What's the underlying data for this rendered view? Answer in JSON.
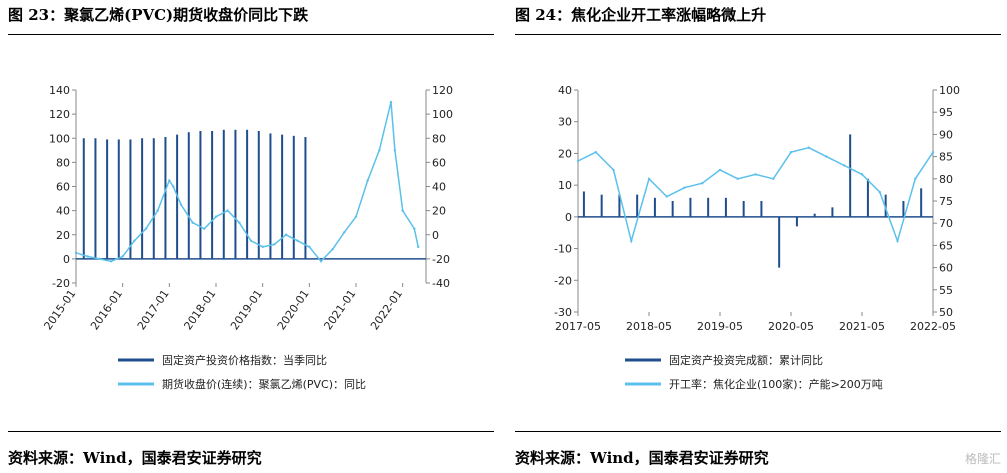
{
  "left": {
    "title": "图 23：聚氯乙烯(PVC)期货收盘价同比下跌",
    "source": "资料来源：Wind，国泰君安证券研究"
  },
  "right": {
    "title": "图 24：焦化企业开工率涨幅略微上升",
    "source": "资料来源：Wind，国泰君安证券研究"
  },
  "watermark": "格隆汇",
  "chart_data": [
    {
      "type": "bar",
      "unit_left": "(%)",
      "unit_right": "(%)",
      "x_ticks": [
        "2015-01",
        "2016-01",
        "2017-01",
        "2018-01",
        "2019-01",
        "2020-01",
        "2021-01",
        "2022-01"
      ],
      "y_left_ticks": [
        -20,
        0,
        20,
        40,
        60,
        80,
        100,
        120,
        140
      ],
      "y_right_ticks": [
        -40,
        -20,
        0,
        20,
        40,
        60,
        80,
        100,
        120
      ],
      "ylim_left": [
        -20,
        140
      ],
      "ylim_right": [
        -40,
        120
      ],
      "colors": {
        "primary": "#1f4e8c",
        "secondary": "#5bc0eb"
      },
      "bar_series": {
        "name": "固定资产投资价格指数：当季同比",
        "axis": "left",
        "x": [
          "2015-03",
          "2015-06",
          "2015-09",
          "2015-12",
          "2016-03",
          "2016-06",
          "2016-09",
          "2016-12",
          "2017-03",
          "2017-06",
          "2017-09",
          "2017-12",
          "2018-03",
          "2018-06",
          "2018-09",
          "2018-12",
          "2019-03",
          "2019-06",
          "2019-09",
          "2019-12"
        ],
        "values": [
          100,
          100,
          99,
          99,
          99,
          100,
          100,
          101,
          103,
          105,
          106,
          106,
          107,
          107,
          107,
          106,
          104,
          103,
          102,
          101
        ]
      },
      "line_series": {
        "name": "期货收盘价(连续)：聚氯乙烯(PVC)：同比",
        "axis": "right",
        "x": [
          "2015-01",
          "2015-04",
          "2015-07",
          "2015-10",
          "2016-01",
          "2016-04",
          "2016-07",
          "2016-10",
          "2017-01",
          "2017-02",
          "2017-04",
          "2017-07",
          "2017-10",
          "2018-01",
          "2018-04",
          "2018-07",
          "2018-10",
          "2019-01",
          "2019-04",
          "2019-07",
          "2019-10",
          "2020-01",
          "2020-04",
          "2020-07",
          "2020-10",
          "2021-01",
          "2021-04",
          "2021-07",
          "2021-10",
          "2021-11",
          "2022-01",
          "2022-04",
          "2022-05"
        ],
        "values": [
          -15,
          -18,
          -20,
          -22,
          -18,
          -5,
          5,
          20,
          45,
          40,
          25,
          10,
          5,
          15,
          20,
          10,
          -5,
          -10,
          -8,
          0,
          -5,
          -10,
          -22,
          -12,
          2,
          15,
          45,
          70,
          110,
          70,
          20,
          5,
          -10
        ]
      },
      "legend_position": "bottom"
    },
    {
      "type": "bar",
      "unit_left": "(%)",
      "unit_right": "(%)",
      "x_ticks": [
        "2017-05",
        "2018-05",
        "2019-05",
        "2020-05",
        "2021-05",
        "2022-05"
      ],
      "y_left_ticks": [
        -30,
        -20,
        -10,
        0,
        10,
        20,
        30,
        40
      ],
      "y_right_ticks": [
        50,
        55,
        60,
        65,
        70,
        75,
        80,
        85,
        90,
        95,
        100
      ],
      "ylim_left": [
        -30,
        40
      ],
      "ylim_right": [
        50,
        100
      ],
      "colors": {
        "primary": "#1f4e8c",
        "secondary": "#5bc0eb"
      },
      "bar_series": {
        "name": "固定资产投资完成额：累计同比",
        "axis": "left",
        "x": [
          "2017-06",
          "2017-09",
          "2017-12",
          "2018-03",
          "2018-06",
          "2018-09",
          "2018-12",
          "2019-03",
          "2019-06",
          "2019-09",
          "2019-12",
          "2020-03",
          "2020-06",
          "2020-09",
          "2020-12",
          "2021-03",
          "2021-06",
          "2021-09",
          "2021-12",
          "2022-03"
        ],
        "values": [
          8,
          7,
          7,
          7,
          6,
          5,
          6,
          6,
          6,
          5,
          5,
          -16,
          -3,
          1,
          3,
          26,
          12,
          7,
          5,
          9
        ]
      },
      "line_series": {
        "name": "开工率：焦化企业(100家)：产能>200万吨",
        "axis": "right",
        "x": [
          "2017-05",
          "2017-08",
          "2017-11",
          "2018-02",
          "2018-05",
          "2018-08",
          "2018-11",
          "2019-02",
          "2019-05",
          "2019-08",
          "2019-11",
          "2020-02",
          "2020-05",
          "2020-08",
          "2020-11",
          "2021-02",
          "2021-05",
          "2021-08",
          "2021-11",
          "2022-02",
          "2022-05"
        ],
        "values": [
          84,
          86,
          82,
          66,
          80,
          76,
          78,
          79,
          82,
          80,
          81,
          80,
          86,
          87,
          85,
          83,
          81,
          77,
          66,
          80,
          86
        ]
      },
      "legend_position": "bottom"
    }
  ]
}
